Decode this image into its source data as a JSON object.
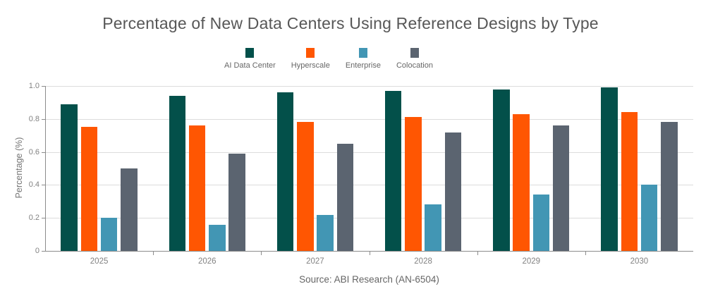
{
  "chart_data": {
    "type": "bar",
    "title": "Percentage of New Data Centers Using Reference Designs by Type",
    "source": "Source: ABI Research (AN-6504)",
    "xlabel": "",
    "ylabel": "Percentage (%)",
    "categories": [
      "2025",
      "2026",
      "2027",
      "2028",
      "2029",
      "2030"
    ],
    "series": [
      {
        "name": "AI Data Center",
        "color": "#03504a",
        "values": [
          0.89,
          0.94,
          0.96,
          0.97,
          0.98,
          0.99
        ]
      },
      {
        "name": "Hyperscale",
        "color": "#ff5602",
        "values": [
          0.75,
          0.76,
          0.78,
          0.81,
          0.83,
          0.84
        ]
      },
      {
        "name": "Enterprise",
        "color": "#4296b4",
        "values": [
          0.2,
          0.16,
          0.22,
          0.28,
          0.34,
          0.4
        ]
      },
      {
        "name": "Colocation",
        "color": "#5b6470",
        "values": [
          0.5,
          0.59,
          0.65,
          0.72,
          0.76,
          0.78
        ]
      }
    ],
    "ylim": [
      0,
      1.0
    ],
    "yticks": [
      0,
      0.2,
      0.4,
      0.6,
      0.8,
      1.0
    ],
    "ytick_labels": [
      "0",
      "0.2",
      "0.4",
      "0.6",
      "0.8",
      "1.0"
    ],
    "grid": true,
    "legend_position": "top-center"
  },
  "colors": {
    "background": "#ffffff",
    "axis": "#8c8c8c",
    "gridline": "#dcdcdc",
    "title_text": "#575757",
    "tick_text": "#828282",
    "legend_text": "#666666",
    "source_text": "#666666"
  }
}
